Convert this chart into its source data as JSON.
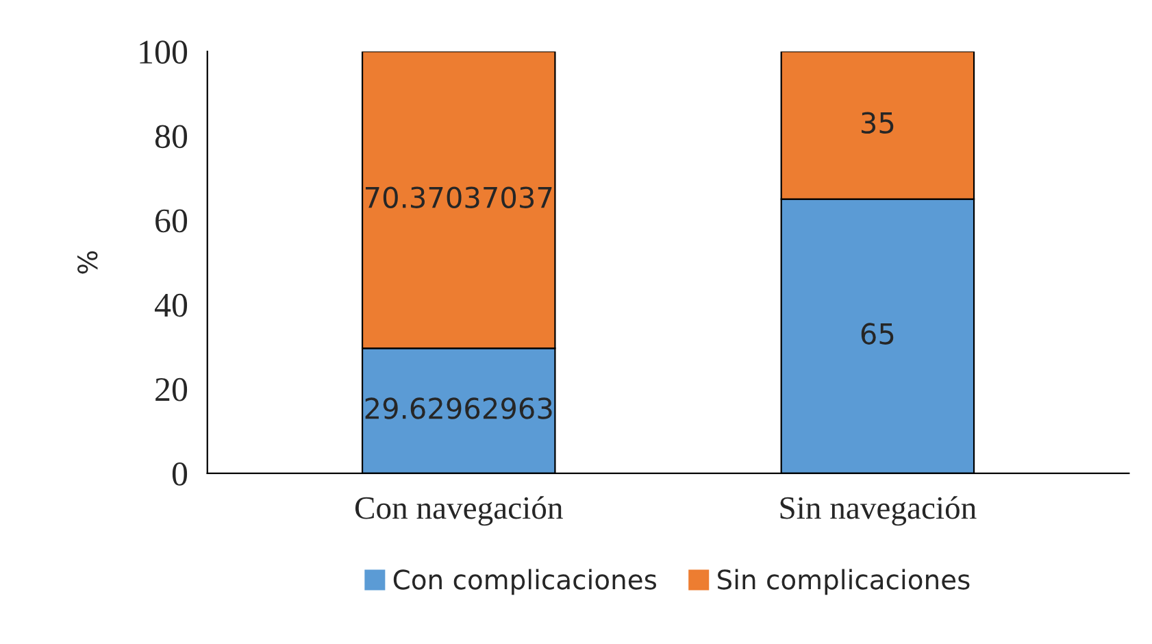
{
  "chart_data": {
    "type": "bar",
    "stacked": true,
    "ylabel": "%",
    "categories": [
      "Con navegación",
      "Sin navegación"
    ],
    "series": [
      {
        "name": "Con complicaciones",
        "color": "#5b9bd5",
        "values": [
          29.62962963,
          65
        ]
      },
      {
        "name": "Sin complicaciones",
        "color": "#ed7d31",
        "values": [
          70.37037037,
          35
        ]
      }
    ],
    "ylim": [
      0,
      100
    ],
    "yticks": [
      0,
      20,
      40,
      60,
      80,
      100
    ],
    "grid": false,
    "legend": "bottom",
    "data_labels": true
  }
}
